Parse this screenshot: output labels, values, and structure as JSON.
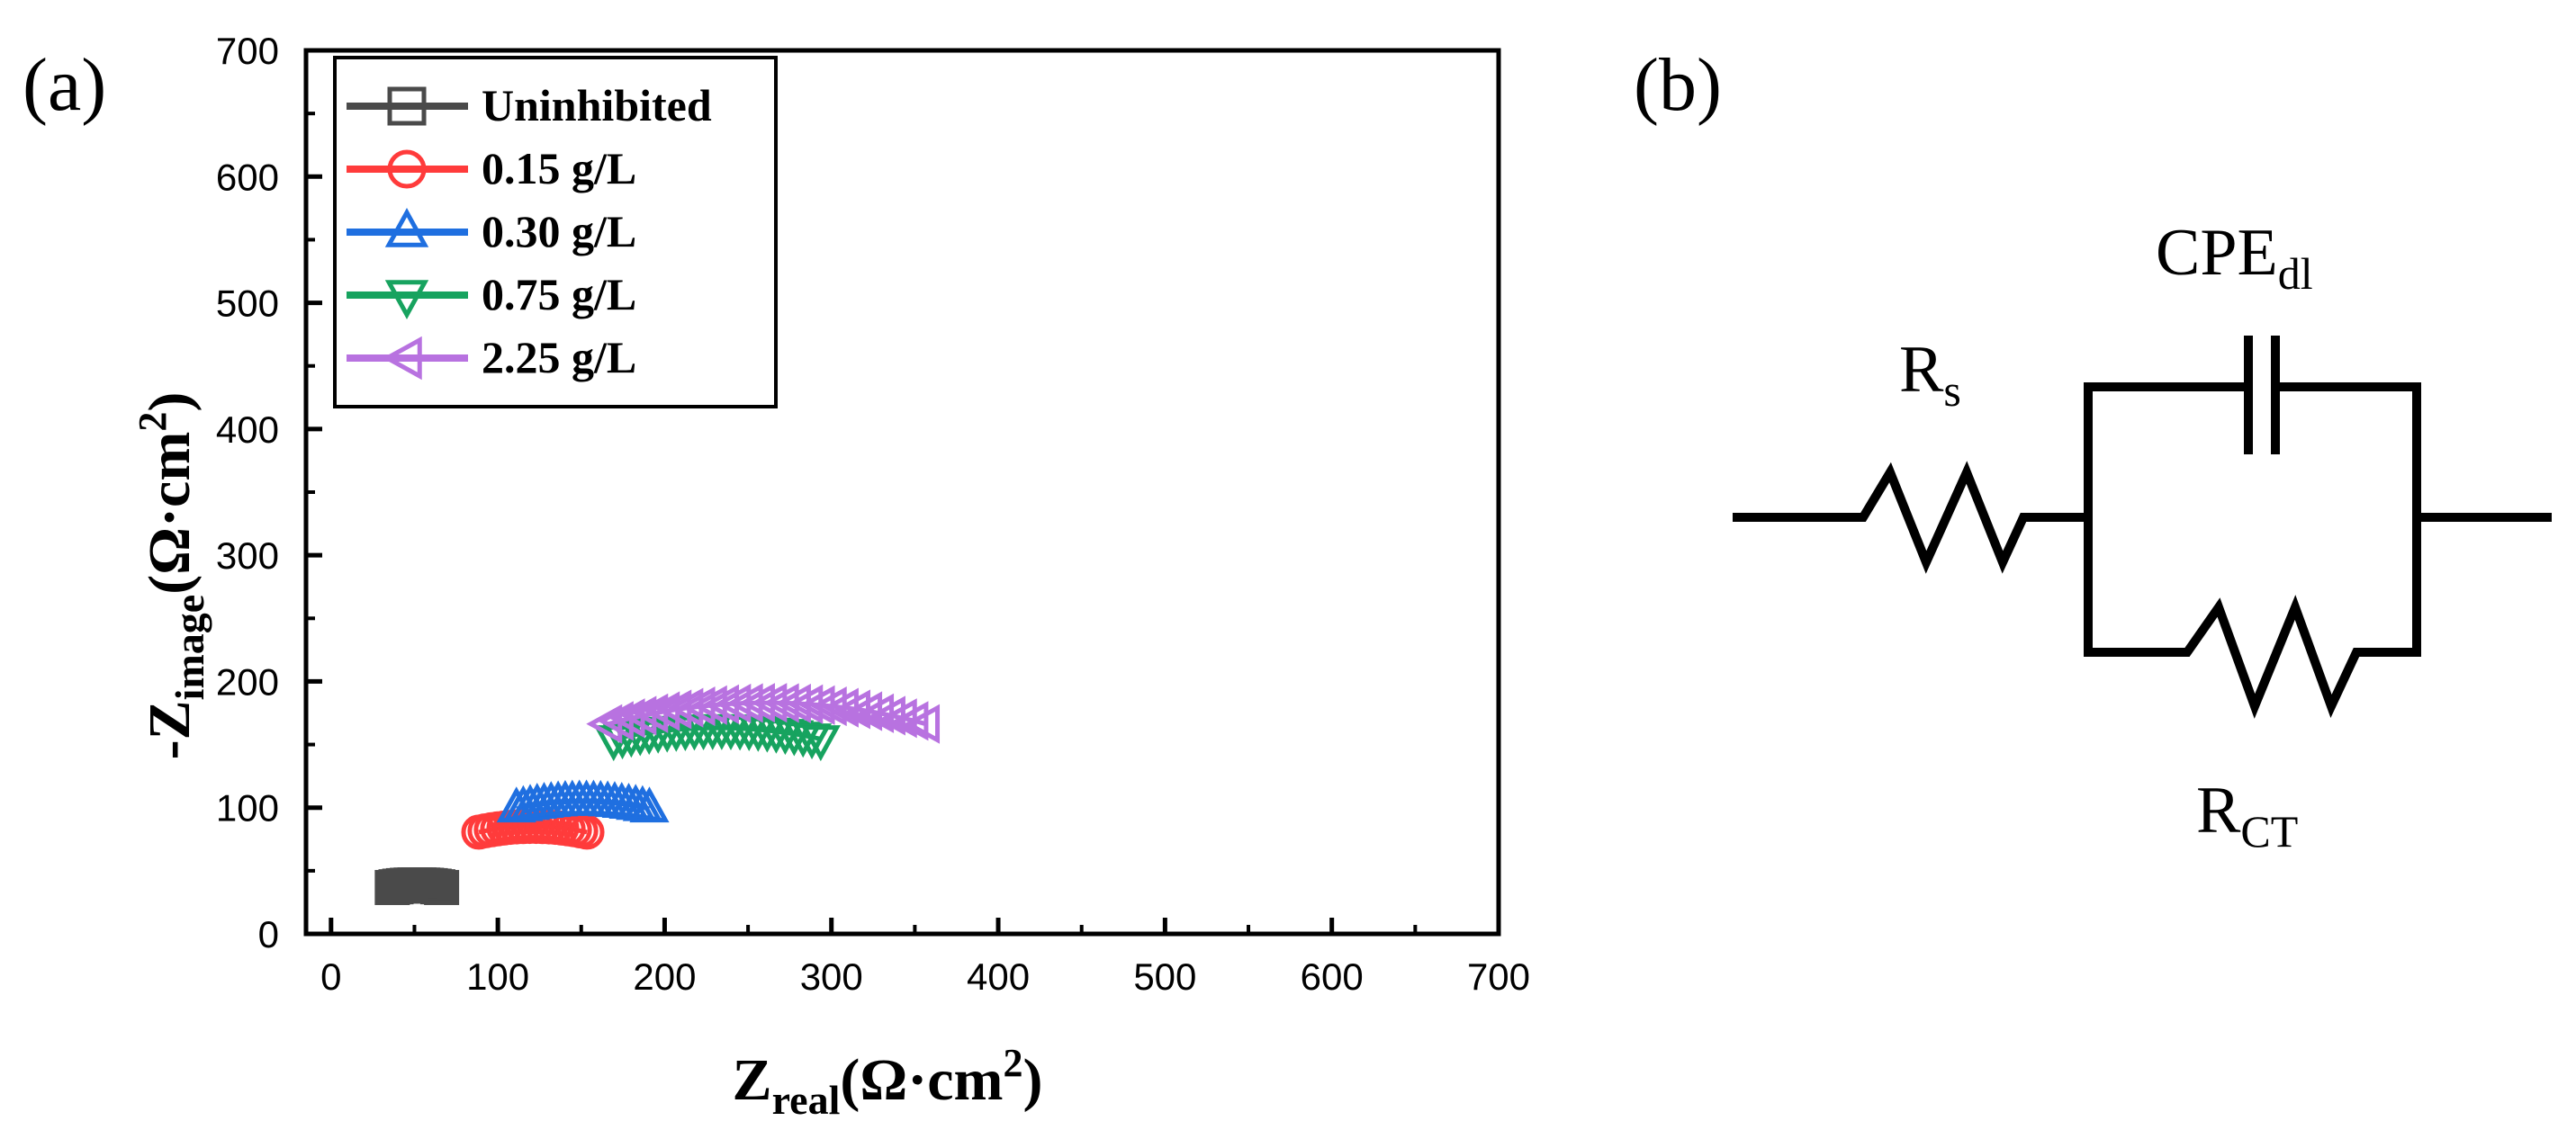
{
  "chart_data": {
    "type": "scatter",
    "panel_label": "(a)",
    "xlabel": {
      "main": "Z",
      "sub": "real",
      "unit_open": "(Ω·cm",
      "unit_sup": "2",
      "unit_close": ")"
    },
    "ylabel": {
      "prefix": "-Z",
      "sub": "image",
      "unit_open": "(Ω·cm",
      "unit_sup": "2",
      "unit_close": ")"
    },
    "xlim": [
      -15,
      700
    ],
    "ylim": [
      0,
      700
    ],
    "xticks": [
      0,
      100,
      200,
      300,
      400,
      500,
      600,
      700
    ],
    "yticks": [
      0,
      100,
      200,
      300,
      400,
      500,
      600,
      700
    ],
    "grid": false,
    "legend_position": "top-left",
    "series": [
      {
        "name": "Uninhibited",
        "marker": "square",
        "color": "#4a4a4a",
        "rs": 0,
        "rct": 103,
        "depression_deg": 16,
        "points": 14
      },
      {
        "name": "0.15 g/L",
        "marker": "circle",
        "color": "#ff3b3b",
        "rs": 8,
        "rct": 226,
        "depression_deg": 16,
        "points": 18
      },
      {
        "name": "0.30 g/L",
        "marker": "triangle-up",
        "color": "#1f6fe0",
        "rs": 12,
        "rct": 278,
        "depression_deg": 16,
        "points": 20
      },
      {
        "name": "0.75 g/L",
        "marker": "triangle-down",
        "color": "#17a35f",
        "rs": 15,
        "rct": 433,
        "depression_deg": 16,
        "points": 24
      },
      {
        "name": "2.25 g/L",
        "marker": "triangle-left",
        "color": "#b872e0",
        "rs": 0,
        "rct": 523,
        "depression_deg": 20,
        "points": 28
      }
    ]
  },
  "circuit": {
    "panel_label": "(b)",
    "rs_label": {
      "main": "R",
      "sub": "s"
    },
    "cpe_label": {
      "main": "CPE",
      "sub": "dl"
    },
    "rct_label": {
      "main": "R",
      "sub": "CT"
    }
  }
}
